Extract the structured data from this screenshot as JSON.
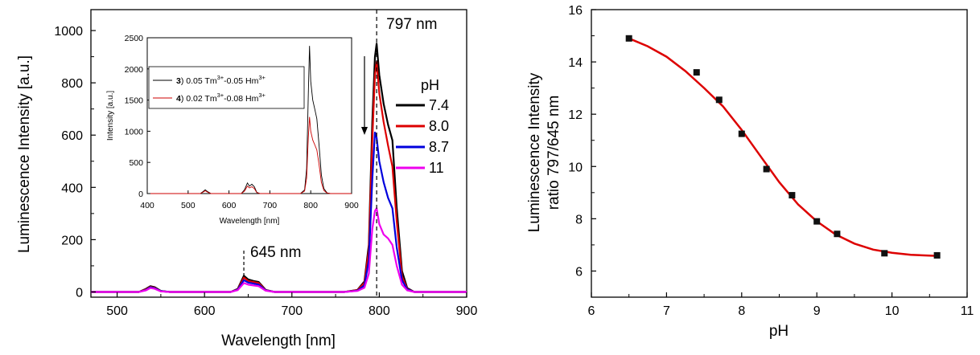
{
  "chart_data": [
    {
      "type": "line",
      "xlabel": "Wavelength [nm]",
      "ylabel": "Luminescence Intensity [a.u.]",
      "xlim": [
        470,
        900
      ],
      "ylim": [
        -20,
        1080
      ],
      "xticks": [
        "500",
        "600",
        "700",
        "800",
        "900"
      ],
      "yticks": [
        "0",
        "200",
        "400",
        "600",
        "800",
        "1000"
      ],
      "annotations": [
        {
          "text": "797 nm",
          "x": 797,
          "type": "dashed-vertical-line"
        },
        {
          "text": "645 nm",
          "x": 645,
          "type": "dashed-vertical-line"
        }
      ],
      "legend": {
        "title": "pH",
        "placement": "right"
      },
      "series": [
        {
          "name": "7.4",
          "color": "#000000",
          "points": [
            [
              470,
              0
            ],
            [
              525,
              0
            ],
            [
              533,
              12
            ],
            [
              538,
              22
            ],
            [
              543,
              18
            ],
            [
              550,
              4
            ],
            [
              560,
              0
            ],
            [
              630,
              0
            ],
            [
              638,
              12
            ],
            [
              645,
              62
            ],
            [
              650,
              48
            ],
            [
              656,
              42
            ],
            [
              662,
              38
            ],
            [
              670,
              8
            ],
            [
              680,
              0
            ],
            [
              760,
              0
            ],
            [
              775,
              8
            ],
            [
              783,
              40
            ],
            [
              788,
              180
            ],
            [
              792,
              650
            ],
            [
              795,
              900
            ],
            [
              797,
              950
            ],
            [
              800,
              830
            ],
            [
              805,
              720
            ],
            [
              810,
              640
            ],
            [
              815,
              580
            ],
            [
              820,
              320
            ],
            [
              826,
              80
            ],
            [
              832,
              15
            ],
            [
              840,
              0
            ],
            [
              900,
              0
            ]
          ]
        },
        {
          "name": "8.0",
          "color": "#dd0000",
          "points": [
            [
              470,
              0
            ],
            [
              525,
              0
            ],
            [
              533,
              10
            ],
            [
              538,
              20
            ],
            [
              543,
              16
            ],
            [
              550,
              3
            ],
            [
              560,
              0
            ],
            [
              630,
              0
            ],
            [
              638,
              10
            ],
            [
              645,
              55
            ],
            [
              650,
              42
            ],
            [
              656,
              38
            ],
            [
              662,
              34
            ],
            [
              670,
              7
            ],
            [
              680,
              0
            ],
            [
              760,
              0
            ],
            [
              775,
              7
            ],
            [
              783,
              35
            ],
            [
              788,
              160
            ],
            [
              792,
              580
            ],
            [
              795,
              830
            ],
            [
              797,
              880
            ],
            [
              800,
              760
            ],
            [
              805,
              650
            ],
            [
              810,
              560
            ],
            [
              815,
              480
            ],
            [
              820,
              270
            ],
            [
              826,
              60
            ],
            [
              832,
              12
            ],
            [
              840,
              0
            ],
            [
              900,
              0
            ]
          ]
        },
        {
          "name": "8.7",
          "color": "#0000dd",
          "points": [
            [
              470,
              0
            ],
            [
              525,
              0
            ],
            [
              533,
              8
            ],
            [
              538,
              18
            ],
            [
              543,
              14
            ],
            [
              550,
              3
            ],
            [
              560,
              0
            ],
            [
              630,
              0
            ],
            [
              638,
              9
            ],
            [
              645,
              45
            ],
            [
              650,
              36
            ],
            [
              656,
              32
            ],
            [
              662,
              28
            ],
            [
              670,
              6
            ],
            [
              680,
              0
            ],
            [
              760,
              0
            ],
            [
              775,
              5
            ],
            [
              783,
              25
            ],
            [
              788,
              120
            ],
            [
              792,
              430
            ],
            [
              795,
              610
            ],
            [
              797,
              590
            ],
            [
              800,
              500
            ],
            [
              805,
              420
            ],
            [
              810,
              360
            ],
            [
              815,
              320
            ],
            [
              820,
              170
            ],
            [
              826,
              45
            ],
            [
              832,
              10
            ],
            [
              840,
              0
            ],
            [
              900,
              0
            ]
          ]
        },
        {
          "name": "11",
          "color": "#ee00ee",
          "points": [
            [
              470,
              0
            ],
            [
              525,
              0
            ],
            [
              533,
              6
            ],
            [
              538,
              15
            ],
            [
              543,
              12
            ],
            [
              550,
              2
            ],
            [
              560,
              0
            ],
            [
              630,
              0
            ],
            [
              638,
              7
            ],
            [
              645,
              34
            ],
            [
              650,
              28
            ],
            [
              656,
              25
            ],
            [
              662,
              22
            ],
            [
              670,
              5
            ],
            [
              680,
              0
            ],
            [
              760,
              0
            ],
            [
              775,
              4
            ],
            [
              783,
              16
            ],
            [
              788,
              70
            ],
            [
              792,
              240
            ],
            [
              795,
              310
            ],
            [
              797,
              320
            ],
            [
              800,
              260
            ],
            [
              805,
              220
            ],
            [
              810,
              205
            ],
            [
              815,
              180
            ],
            [
              820,
              100
            ],
            [
              826,
              28
            ],
            [
              832,
              6
            ],
            [
              840,
              0
            ],
            [
              900,
              0
            ]
          ]
        }
      ],
      "inset": {
        "type": "line",
        "xlabel": "Wavelength [nm]",
        "ylabel": "Intensity [a.u.]",
        "xlim": [
          400,
          900
        ],
        "ylim": [
          0,
          2500
        ],
        "xticks": [
          "400",
          "500",
          "600",
          "700",
          "800",
          "900"
        ],
        "yticks": [
          "0",
          "500",
          "1000",
          "1500",
          "2000",
          "2500"
        ],
        "legend": [
          {
            "num": "3",
            "text1": ") 0.05 Tm",
            "sup1": "3+",
            "text2": "-0.05 Hm",
            "sup2": "3+",
            "color": "#000000"
          },
          {
            "num": "4",
            "text1": ") 0.02 Tm",
            "sup1": "3+",
            "text2": "-0.08 Hm",
            "sup2": "3+",
            "color": "#cc0000"
          }
        ],
        "series": [
          {
            "name": "3",
            "color": "#000000",
            "points": [
              [
                400,
                0
              ],
              [
                530,
                0
              ],
              [
                536,
                30
              ],
              [
                542,
                60
              ],
              [
                548,
                30
              ],
              [
                556,
                0
              ],
              [
                630,
                0
              ],
              [
                638,
                60
              ],
              [
                645,
                170
              ],
              [
                650,
                120
              ],
              [
                656,
                150
              ],
              [
                662,
                110
              ],
              [
                668,
                20
              ],
              [
                676,
                0
              ],
              [
                775,
                0
              ],
              [
                785,
                60
              ],
              [
                790,
                400
              ],
              [
                794,
                1600
              ],
              [
                797,
                2370
              ],
              [
                800,
                1800
              ],
              [
                805,
                1500
              ],
              [
                810,
                1350
              ],
              [
                815,
                1200
              ],
              [
                820,
                800
              ],
              [
                826,
                300
              ],
              [
                832,
                80
              ],
              [
                840,
                10
              ],
              [
                848,
                0
              ],
              [
                900,
                0
              ]
            ]
          },
          {
            "name": "4",
            "color": "#cc0000",
            "points": [
              [
                400,
                0
              ],
              [
                530,
                0
              ],
              [
                536,
                20
              ],
              [
                542,
                45
              ],
              [
                548,
                20
              ],
              [
                556,
                0
              ],
              [
                630,
                0
              ],
              [
                638,
                40
              ],
              [
                645,
                120
              ],
              [
                650,
                90
              ],
              [
                656,
                110
              ],
              [
                662,
                80
              ],
              [
                668,
                15
              ],
              [
                676,
                0
              ],
              [
                775,
                0
              ],
              [
                785,
                40
              ],
              [
                790,
                250
              ],
              [
                794,
                900
              ],
              [
                797,
                1230
              ],
              [
                800,
                1000
              ],
              [
                805,
                860
              ],
              [
                810,
                780
              ],
              [
                815,
                700
              ],
              [
                820,
                480
              ],
              [
                826,
                180
              ],
              [
                832,
                50
              ],
              [
                840,
                8
              ],
              [
                848,
                0
              ],
              [
                900,
                0
              ]
            ]
          }
        ]
      }
    },
    {
      "type": "scatter",
      "xlabel": "pH",
      "ylabel": "Luminescence Intensity",
      "ylabel2": "ratio 797/645 nm",
      "xlim": [
        6,
        11
      ],
      "ylim": [
        5,
        16
      ],
      "xticks": [
        "6",
        "7",
        "8",
        "9",
        "10",
        "11"
      ],
      "yticks": [
        "6",
        "8",
        "10",
        "12",
        "14",
        "16"
      ],
      "points": [
        [
          6.5,
          14.9
        ],
        [
          7.4,
          13.6
        ],
        [
          7.7,
          12.55
        ],
        [
          8.0,
          11.25
        ],
        [
          8.33,
          9.9
        ],
        [
          8.67,
          8.9
        ],
        [
          9.0,
          7.9
        ],
        [
          9.27,
          7.42
        ],
        [
          9.9,
          6.68
        ],
        [
          10.6,
          6.6
        ]
      ],
      "fit": {
        "type": "sigmoid",
        "color": "#dd0000",
        "points": [
          [
            6.5,
            14.9
          ],
          [
            6.75,
            14.6
          ],
          [
            7.0,
            14.2
          ],
          [
            7.25,
            13.65
          ],
          [
            7.5,
            13.0
          ],
          [
            7.75,
            12.3
          ],
          [
            8.0,
            11.4
          ],
          [
            8.25,
            10.4
          ],
          [
            8.5,
            9.4
          ],
          [
            8.75,
            8.55
          ],
          [
            9.0,
            7.9
          ],
          [
            9.25,
            7.4
          ],
          [
            9.5,
            7.05
          ],
          [
            9.75,
            6.82
          ],
          [
            10.0,
            6.7
          ],
          [
            10.25,
            6.62
          ],
          [
            10.6,
            6.58
          ]
        ]
      },
      "marker_color": "#111111"
    }
  ]
}
